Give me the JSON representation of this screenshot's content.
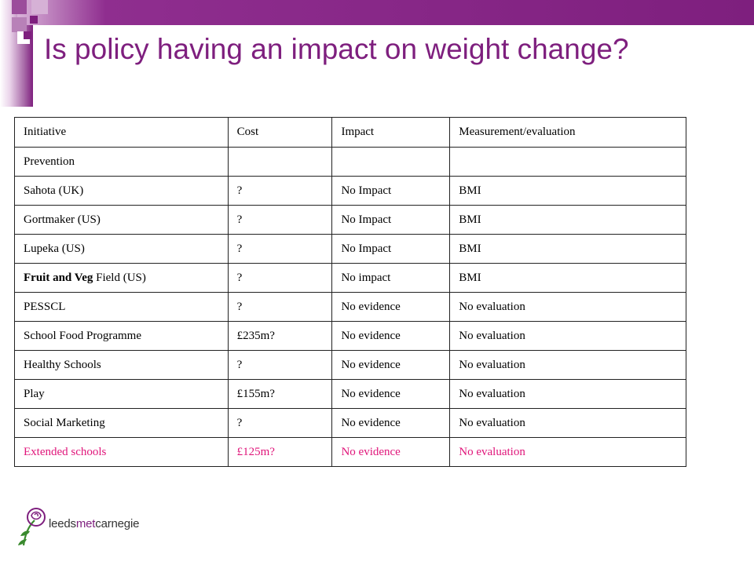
{
  "title": "Is policy having an impact on weight change?",
  "table": {
    "headers": [
      "Initiative",
      "Cost",
      "Impact",
      "Measurement/evaluation"
    ],
    "rows": [
      [
        "Prevention",
        "",
        "",
        ""
      ],
      [
        "Sahota (UK)",
        "?",
        "No Impact",
        "BMI"
      ],
      [
        "Gortmaker (US)",
        "?",
        "No Impact",
        "BMI"
      ],
      [
        "Lupeka (US)",
        "?",
        "No Impact",
        "BMI"
      ],
      [
        "Fruit and Veg",
        "?",
        "No impact",
        "BMI"
      ],
      [
        "PESSCL",
        "?",
        "No evidence",
        "No evaluation"
      ],
      [
        "School Food Programme",
        "£235m?",
        "No evidence",
        "No evaluation"
      ],
      [
        "Healthy Schools",
        "?",
        "No evidence",
        "No evaluation"
      ],
      [
        "Play",
        "£155m?",
        "No evidence",
        "No evaluation"
      ],
      [
        "Social Marketing",
        "?",
        "No evidence",
        "No evaluation"
      ],
      [
        "Extended schools",
        "£125m?",
        "No evidence",
        "No evaluation"
      ]
    ],
    "row5_suffix": " Field (US)"
  },
  "logo": {
    "part1": "leeds",
    "part2": "met",
    "part3": "carnegie"
  },
  "colors": {
    "accent": "#7e1f7e",
    "highlight_row": "#e0157a"
  }
}
